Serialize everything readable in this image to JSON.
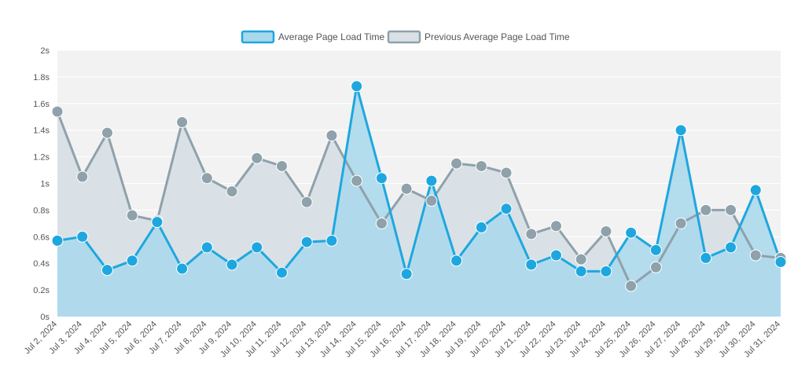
{
  "chart_data": {
    "type": "area",
    "categories": [
      "Jul 2, 2024",
      "Jul 3, 2024",
      "Jul 4, 2024",
      "Jul 5, 2024",
      "Jul 6, 2024",
      "Jul 7, 2024",
      "Jul 8, 2024",
      "Jul 9, 2024",
      "Jul 10, 2024",
      "Jul 11, 2024",
      "Jul 12, 2024",
      "Jul 13, 2024",
      "Jul 14, 2024",
      "Jul 15, 2024",
      "Jul 16, 2024",
      "Jul 17, 2024",
      "Jul 18, 2024",
      "Jul 19, 2024",
      "Jul 20, 2024",
      "Jul 21, 2024",
      "Jul 22, 2024",
      "Jul 23, 2024",
      "Jul 24, 2024",
      "Jul 25, 2024",
      "Jul 26, 2024",
      "Jul 27, 2024",
      "Jul 28, 2024",
      "Jul 29, 2024",
      "Jul 30, 2024",
      "Jul 31, 2024"
    ],
    "series": [
      {
        "name": "Average Page Load Time",
        "color": "#1ea7df",
        "fill": "#a8d8ec",
        "values": [
          0.57,
          0.6,
          0.35,
          0.42,
          0.71,
          0.36,
          0.52,
          0.39,
          0.52,
          0.33,
          0.56,
          0.57,
          1.73,
          1.04,
          0.32,
          1.02,
          0.42,
          0.67,
          0.81,
          0.39,
          0.46,
          0.34,
          0.34,
          0.63,
          0.5,
          1.4,
          0.44,
          0.52,
          0.95,
          0.41
        ]
      },
      {
        "name": "Previous Average Page Load Time",
        "color": "#8fa1ab",
        "fill": "#d9e1e6",
        "values": [
          1.54,
          1.05,
          1.38,
          0.76,
          0.72,
          1.46,
          1.04,
          0.94,
          1.19,
          1.13,
          0.86,
          1.36,
          1.02,
          0.7,
          0.96,
          0.87,
          1.15,
          1.13,
          1.08,
          0.62,
          0.68,
          0.43,
          0.64,
          0.23,
          0.37,
          0.7,
          0.8,
          0.8,
          0.46,
          0.44
        ]
      }
    ],
    "yticks": [
      "0s",
      "0.2s",
      "0.4s",
      "0.6s",
      "0.8s",
      "1s",
      "1.2s",
      "1.4s",
      "1.6s",
      "1.8s",
      "2s"
    ],
    "ylim": [
      0,
      2
    ],
    "legend_position": "top-center",
    "plot_background": "#f2f2f2"
  }
}
